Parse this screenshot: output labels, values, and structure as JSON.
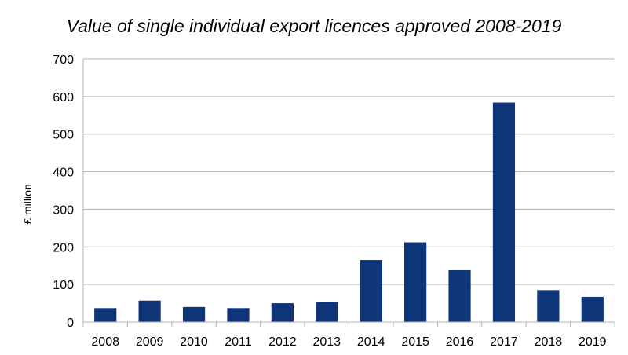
{
  "chart_data": {
    "type": "bar",
    "title": "Value of single individual export licences approved 2008-2019",
    "xlabel": "",
    "ylabel": "£ million",
    "categories": [
      "2008",
      "2009",
      "2010",
      "2011",
      "2012",
      "2013",
      "2014",
      "2015",
      "2016",
      "2017",
      "2018",
      "2019"
    ],
    "values": [
      37,
      57,
      40,
      37,
      50,
      54,
      165,
      212,
      138,
      584,
      85,
      67
    ],
    "ylim": [
      0,
      700
    ],
    "yticks": [
      0,
      100,
      200,
      300,
      400,
      500,
      600,
      700
    ],
    "grid": true,
    "bar_color": "#0e3578",
    "grid_color": "#b3b3b3"
  }
}
